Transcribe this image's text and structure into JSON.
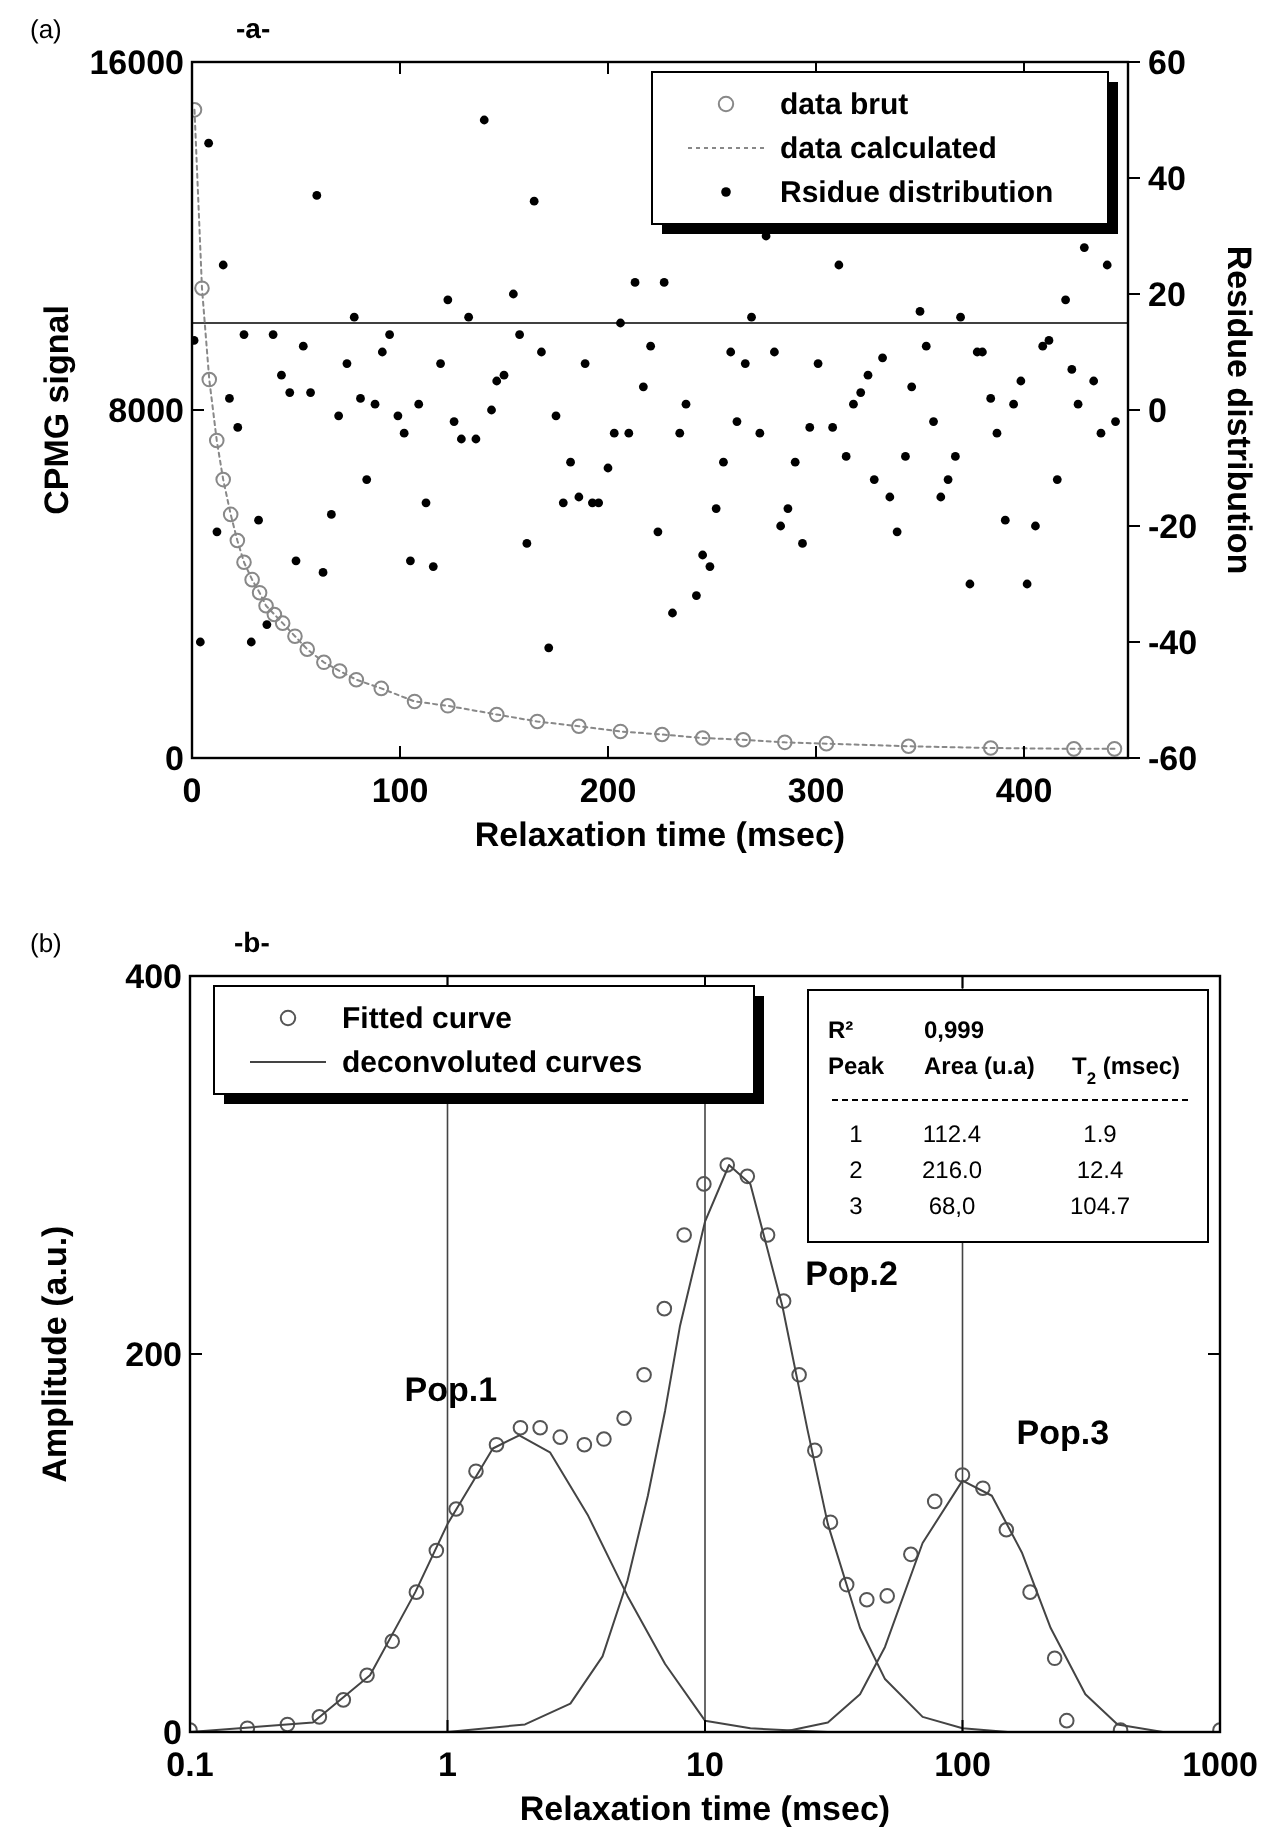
{
  "chart_data": [
    {
      "type": "scatter",
      "title": "-a-",
      "xlabel": "Relaxation time (msec)",
      "ylabel": "CPMG signal",
      "y2label": "Residue distribution",
      "annotations": [
        "(a)"
      ],
      "xlim": [
        0,
        450
      ],
      "xticks": [
        0,
        100,
        200,
        300,
        400
      ],
      "ylim": [
        0,
        16000
      ],
      "yticks": [
        0,
        8000,
        16000
      ],
      "y2lim": [
        -60,
        60
      ],
      "y2ticks": [
        -60,
        -40,
        -20,
        0,
        20,
        40,
        60
      ],
      "legend": "top right",
      "grid": false,
      "ref_lines": [
        {
          "axis": "y",
          "value": 10000,
          "color": "#000000"
        }
      ],
      "series": [
        {
          "name": "data brut",
          "marker": "circle",
          "color": "#888888",
          "x": [
            1.2,
            4.8,
            8.3,
            11.9,
            15,
            18.6,
            21.8,
            25,
            28.9,
            32.5,
            35.6,
            39.6,
            43.6,
            49.5,
            55.4,
            63.4,
            71,
            79,
            91,
            107,
            123,
            146.5,
            166,
            186,
            206,
            226,
            245.5,
            265,
            285,
            305,
            344.5,
            384,
            424,
            443.5
          ],
          "values": [
            14900,
            10800,
            8700,
            7300,
            6400,
            5600,
            5000,
            4500,
            4100,
            3800,
            3500,
            3300,
            3100,
            2800,
            2500,
            2200,
            2000,
            1800,
            1600,
            1300,
            1200,
            1000,
            840,
            730,
            610,
            540,
            460,
            420,
            360,
            330,
            270,
            230,
            210,
            210
          ]
        },
        {
          "name": "data calculated",
          "type": "line",
          "line_style": "dotted",
          "marker": "none",
          "color": "#888888",
          "x": [
            1.2,
            4.8,
            8.3,
            11.9,
            15,
            18.6,
            21.8,
            25,
            28.9,
            32.5,
            35.6,
            39.6,
            43.6,
            49.5,
            55.4,
            63.4,
            71,
            79,
            91,
            107,
            123,
            146.5,
            166,
            186,
            206,
            226,
            245.5,
            265,
            285,
            305,
            344.5,
            384,
            424,
            443.5
          ],
          "values": [
            14900,
            10800,
            8700,
            7300,
            6400,
            5600,
            5000,
            4500,
            4100,
            3800,
            3500,
            3300,
            3100,
            2800,
            2500,
            2200,
            2000,
            1800,
            1600,
            1300,
            1200,
            1000,
            840,
            730,
            610,
            540,
            460,
            420,
            360,
            330,
            270,
            230,
            210,
            210
          ]
        },
        {
          "name": "Rsidue distribution",
          "marker": "circle",
          "axis": "y2",
          "color": "#000000",
          "x": [
            1,
            4,
            8,
            15,
            12,
            18,
            22,
            25,
            28.5,
            32,
            36,
            39,
            43,
            47,
            50,
            53.5,
            57,
            60,
            63,
            67,
            70.5,
            74.5,
            78,
            81,
            84,
            88,
            91.5,
            95,
            99,
            102,
            105,
            109,
            112.5,
            116,
            119.5,
            123,
            126,
            129.5,
            133,
            136.5,
            140.5,
            144,
            146.5,
            150,
            154.5,
            157.5,
            161,
            164.5,
            168,
            171.5,
            175,
            178.5,
            182,
            186,
            189,
            192.5,
            195.5,
            200,
            203,
            206,
            210,
            213,
            217,
            220.5,
            224,
            227,
            231,
            234.5,
            237.5,
            242.5,
            245.5,
            249,
            252,
            255.5,
            259,
            262,
            266,
            269,
            273,
            276,
            280,
            283,
            286.5,
            290,
            293.5,
            297,
            301,
            308,
            311,
            314.5,
            318,
            321.5,
            325,
            328,
            332,
            335.5,
            339,
            343,
            346,
            350,
            353,
            356.5,
            360,
            363.5,
            367,
            369.5,
            374,
            377.5,
            380,
            384,
            387,
            391,
            395,
            398.5,
            401.5,
            405.5,
            409,
            412,
            416,
            420,
            423,
            426,
            429,
            433.5,
            437,
            440,
            444
          ],
          "values": [
            12,
            -40,
            46,
            25,
            -21,
            2,
            -3,
            13,
            -40,
            -19,
            -37,
            13,
            6,
            3,
            -26,
            11,
            3,
            37,
            -28,
            -18,
            -1,
            8,
            16,
            2,
            -12,
            1,
            10,
            13,
            -1,
            -4,
            -26,
            1,
            -16,
            -27,
            8,
            19,
            -2,
            -5,
            16,
            -5,
            50,
            0,
            5,
            6,
            20,
            13,
            -23,
            36,
            10,
            -41,
            -1,
            -16,
            -9,
            -15,
            8,
            -16,
            -16,
            -10,
            -4,
            15,
            -4,
            22,
            4,
            11,
            -21,
            22,
            -35,
            -4,
            1,
            -32,
            -25,
            -27,
            -17,
            -9,
            10,
            -2,
            8,
            16,
            -4,
            30,
            10,
            -20,
            -17,
            -9,
            -23,
            -3,
            8,
            -3,
            25,
            -8,
            1,
            3,
            6,
            -12,
            9,
            -15,
            -21,
            -8,
            4,
            17,
            11,
            -2,
            -15,
            -12,
            -8,
            16,
            -30,
            10,
            10,
            2,
            -4,
            -19,
            1,
            5,
            -30,
            -20,
            11,
            12,
            -12,
            19,
            7,
            1,
            28,
            5,
            -4,
            25,
            -2
          ]
        }
      ]
    },
    {
      "type": "line",
      "title": "-b-",
      "xlabel": "Relaxation time (msec)",
      "ylabel": "Amplitude (a.u.)",
      "log": "x",
      "xlim": [
        0.1,
        1000
      ],
      "xticks": [
        0.1,
        1,
        10,
        100,
        1000
      ],
      "ylim": [
        0,
        400
      ],
      "yticks": [
        0,
        200,
        400
      ],
      "legend": "top left",
      "grid": false,
      "ref_lines": [
        {
          "axis": "x",
          "value": 1,
          "color": "#444444"
        },
        {
          "axis": "x",
          "value": 10,
          "color": "#444444"
        },
        {
          "axis": "x",
          "value": 100,
          "color": "#444444"
        }
      ],
      "annotations": [
        "(b)",
        {
          "text": "Pop.1",
          "x": 1.03,
          "y": 175
        },
        {
          "text": "Pop.2",
          "x": 20.2,
          "y": 228
        },
        {
          "text": "Pop.3",
          "x": 120,
          "y": 129
        },
        "R²",
        "0,999",
        "Peak",
        "Area (u.a)",
        "T$_{2}$ (msec)",
        "1",
        "112.4",
        "1.9",
        "2",
        "216.0",
        "12.4",
        "3",
        "68,0",
        "104.7"
      ],
      "series": [
        {
          "name": "Fitted curve",
          "type": "scatter",
          "marker": "circle",
          "color": "#555555",
          "x": [
            0.1,
            0.167,
            0.239,
            0.318,
            0.394,
            0.487,
            0.61,
            0.757,
            0.905,
            1.08,
            1.29,
            1.55,
            1.92,
            2.29,
            2.74,
            3.4,
            4.05,
            4.85,
            5.8,
            6.95,
            8.3,
            9.9,
            12.2,
            14.6,
            17.5,
            20.2,
            23.2,
            26.7,
            30.7,
            35.5,
            42.5,
            51,
            63,
            78,
            100,
            120,
            148,
            183,
            228,
            254,
            411,
            1000
          ],
          "values": [
            1,
            2,
            4,
            8,
            17,
            30,
            48,
            74,
            96,
            118,
            138,
            152,
            161,
            161,
            156,
            152,
            155,
            166,
            189,
            224,
            263,
            290,
            300,
            294,
            263,
            228,
            189,
            149,
            111,
            78,
            70,
            72,
            94,
            122,
            136,
            129,
            107,
            74,
            39,
            6,
            1,
            1
          ]
        },
        {
          "name": "deconvoluted curves",
          "line_style": "solid",
          "marker": "none",
          "color": "#444444",
          "x": [
            0.1,
            0.3,
            0.5,
            0.75,
            1,
            1.5,
            1.9,
            2.5,
            3.5,
            5,
            7,
            10,
            15,
            20,
            30
          ],
          "values": [
            0,
            5,
            30,
            74,
            110,
            150,
            157,
            148,
            115,
            72,
            36,
            6,
            2,
            1,
            0
          ]
        },
        {
          "line_style": "solid",
          "marker": "none",
          "color": "#444444",
          "x": [
            1,
            2,
            3,
            4,
            5,
            6,
            7,
            8,
            10,
            12.4,
            15,
            20,
            25,
            30,
            40,
            50,
            70,
            100,
            150
          ],
          "values": [
            0,
            4,
            15,
            40,
            80,
            125,
            170,
            215,
            270,
            300,
            290,
            225,
            160,
            110,
            55,
            28,
            8,
            2,
            0
          ]
        },
        {
          "line_style": "solid",
          "marker": "none",
          "color": "#444444",
          "x": [
            20,
            30,
            40,
            50,
            70,
            100,
            130,
            170,
            220,
            300,
            400,
            600
          ],
          "values": [
            0,
            5,
            20,
            45,
            100,
            133,
            125,
            95,
            55,
            20,
            4,
            0
          ]
        }
      ]
    }
  ]
}
